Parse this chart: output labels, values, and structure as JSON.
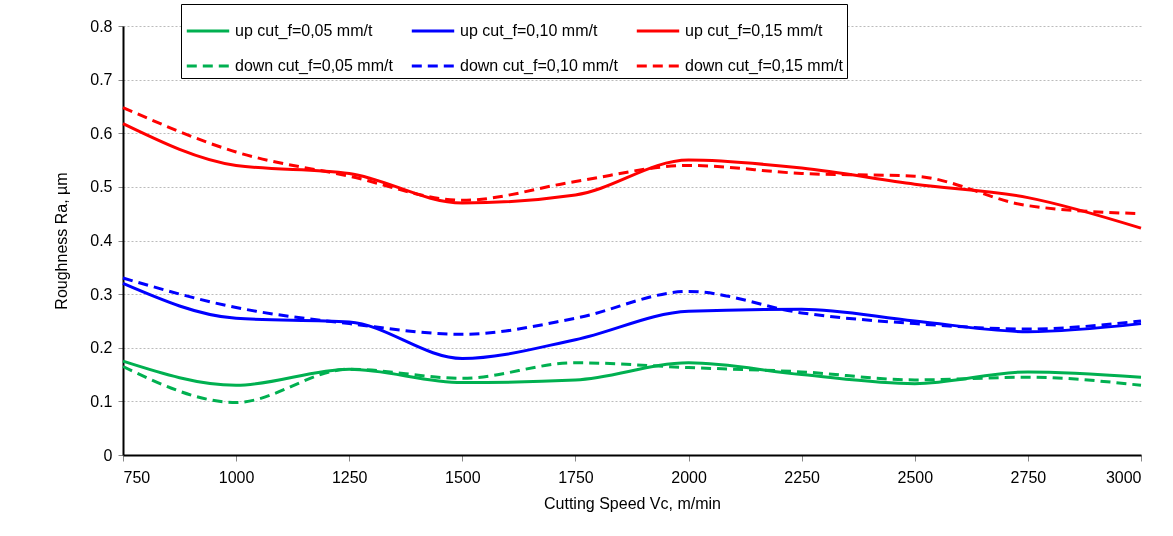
{
  "chart_data": {
    "type": "line",
    "xlabel": "Cutting Speed Vc, m/min",
    "ylabel": "Roughness  Ra, µm",
    "x": [
      750,
      1000,
      1250,
      1500,
      1750,
      2000,
      2250,
      2500,
      2750,
      3000
    ],
    "xlim": [
      750,
      3000
    ],
    "xticks": [
      750,
      1000,
      1250,
      1500,
      1750,
      2000,
      2250,
      2500,
      2750,
      3000
    ],
    "ylim": [
      0,
      0.8
    ],
    "yticks": [
      0,
      0.1,
      0.2,
      0.3,
      0.4,
      0.5,
      0.6,
      0.7,
      0.8
    ],
    "grid": "y",
    "legend": "top",
    "marker": "none",
    "series": [
      {
        "name": "up cut_f=0,05 mm/t",
        "color": "#00b050",
        "line_style": "solid",
        "values": [
          0.175,
          0.13,
          0.16,
          0.135,
          0.14,
          0.172,
          0.15,
          0.133,
          0.155,
          0.145
        ]
      },
      {
        "name": "up cut_f=0,10 mm/t",
        "color": "#0000ff",
        "line_style": "solid",
        "values": [
          0.32,
          0.255,
          0.248,
          0.18,
          0.215,
          0.268,
          0.272,
          0.25,
          0.23,
          0.245
        ]
      },
      {
        "name": "up cut_f=0,15 mm/t",
        "color": "#ff0000",
        "line_style": "solid",
        "values": [
          0.618,
          0.54,
          0.525,
          0.47,
          0.485,
          0.55,
          0.535,
          0.505,
          0.48,
          0.423
        ]
      },
      {
        "name": "down cut_f=0,05 mm/t",
        "color": "#00b050",
        "line_style": "dashed",
        "values": [
          0.165,
          0.098,
          0.16,
          0.143,
          0.172,
          0.163,
          0.155,
          0.14,
          0.145,
          0.13
        ]
      },
      {
        "name": "down cut_f=0,10 mm/t",
        "color": "#0000ff",
        "line_style": "dashed",
        "values": [
          0.33,
          0.275,
          0.245,
          0.225,
          0.255,
          0.305,
          0.265,
          0.245,
          0.235,
          0.25
        ]
      },
      {
        "name": "down cut_f=0,15 mm/t",
        "color": "#ff0000",
        "line_style": "dashed",
        "values": [
          0.648,
          0.565,
          0.52,
          0.475,
          0.51,
          0.54,
          0.525,
          0.52,
          0.465,
          0.45
        ]
      }
    ]
  }
}
